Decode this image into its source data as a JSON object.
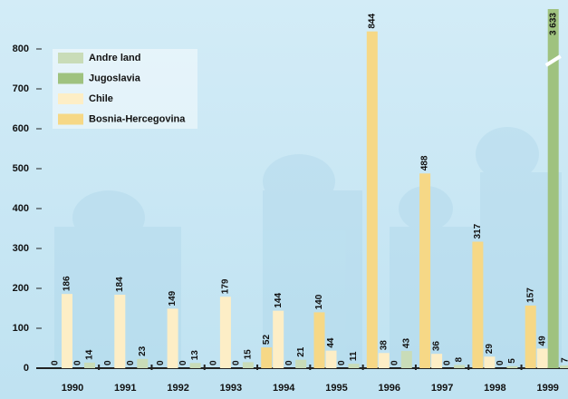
{
  "chart_data": {
    "type": "bar",
    "categories": [
      "1990",
      "1991",
      "1992",
      "1993",
      "1994",
      "1995",
      "1996",
      "1997",
      "1998",
      "1999"
    ],
    "series": [
      {
        "name": "Bosnia-Hercegovina",
        "color": "#f6d886",
        "values": [
          0,
          0,
          0,
          0,
          52,
          140,
          844,
          488,
          317,
          157
        ]
      },
      {
        "name": "Chile",
        "color": "#fdeec6",
        "values": [
          186,
          184,
          149,
          179,
          144,
          44,
          38,
          36,
          29,
          49
        ]
      },
      {
        "name": "Jugoslavia",
        "color": "#9fc27f",
        "values": [
          0,
          0,
          0,
          0,
          0,
          0,
          0,
          0,
          0,
          3633
        ],
        "value_labels": [
          null,
          null,
          null,
          null,
          null,
          null,
          null,
          null,
          null,
          "3 633"
        ]
      },
      {
        "name": "Andre land",
        "color": "#c9dcb8",
        "values": [
          14,
          23,
          13,
          15,
          21,
          11,
          43,
          8,
          5,
          7
        ]
      }
    ],
    "ylim": [
      0,
      900
    ],
    "yticks": [
      0,
      100,
      200,
      300,
      400,
      500,
      600,
      700,
      800
    ],
    "legend": "upper left"
  }
}
